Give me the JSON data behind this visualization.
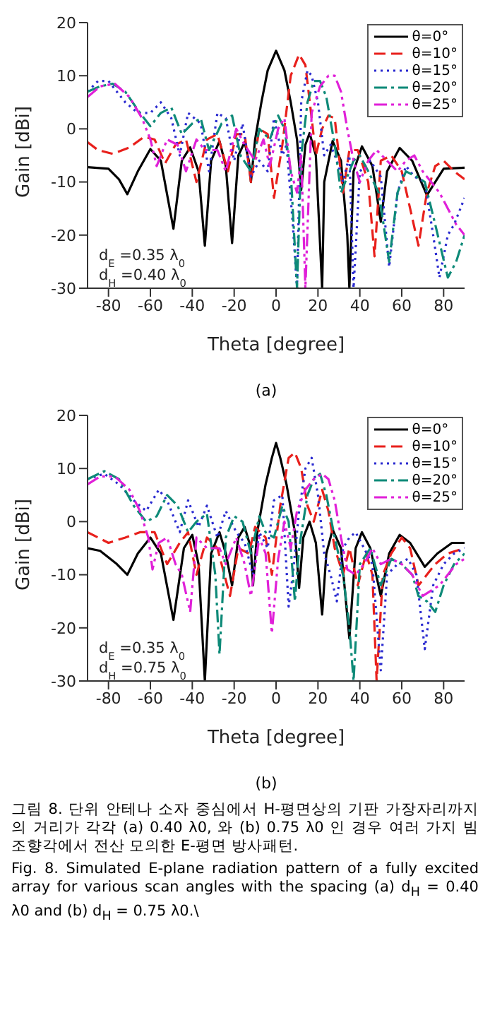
{
  "chart_data": [
    {
      "type": "line",
      "xlabel": "Theta [degree]",
      "ylabel": "Gain [dBi]",
      "xlim": [
        -90,
        90
      ],
      "xticks": [
        -80,
        -60,
        -40,
        -20,
        0,
        20,
        40,
        60,
        80
      ],
      "ylim": [
        -30,
        20
      ],
      "yticks": [
        -30,
        -20,
        -10,
        0,
        10,
        20
      ],
      "grid": false,
      "legend": "top right",
      "marker": "none",
      "annotations": [
        "d$_{E}$=0.35 λ$_{0}$",
        "d$_{H}$=0.40 λ$_{0}$",
        "(a)"
      ],
      "series": [
        {
          "name": "θ=0°",
          "color": "#000000",
          "line_style": "solid",
          "x": [
            -90,
            -80,
            -75,
            -71,
            -66,
            -60,
            -55,
            -49,
            -45,
            -41,
            -37,
            -34,
            -31,
            -27,
            -24,
            -21,
            -18,
            -15,
            -13,
            -12,
            -10,
            -7,
            -4,
            0,
            4,
            7,
            10,
            12,
            14,
            16,
            19,
            22,
            23,
            27,
            31,
            34,
            35,
            37,
            41,
            46,
            50,
            53,
            59,
            65,
            72,
            80,
            90
          ],
          "values": [
            -7.2,
            -7.5,
            -9.5,
            -12.3,
            -8,
            -3.8,
            -6,
            -18.8,
            -6,
            -3.5,
            -8,
            -22,
            -6,
            -2.3,
            -7,
            -21.5,
            -5,
            -2.5,
            -6,
            -10,
            -2,
            5,
            11,
            14.7,
            11,
            5,
            -2,
            -11.5,
            -3,
            -0.8,
            -5,
            -30,
            -10,
            -2.3,
            -6,
            -20,
            -30,
            -8,
            -3.3,
            -7,
            -17.5,
            -8,
            -3.6,
            -6,
            -12.5,
            -7.5,
            -7.3
          ]
        },
        {
          "name": "θ=10°",
          "color": "#e8201c",
          "line_style": "dashed",
          "x": [
            -90,
            -85,
            -78,
            -70,
            -63,
            -58,
            -53,
            -48,
            -43,
            -38,
            -33,
            -28,
            -23,
            -19,
            -15,
            -12,
            -8,
            -4,
            -1,
            3,
            7,
            11,
            14,
            17,
            19,
            22,
            25,
            28,
            32,
            35,
            39,
            44,
            47,
            50,
            55,
            60,
            64,
            68,
            72,
            76,
            80,
            85,
            90
          ],
          "values": [
            -2.5,
            -4,
            -4.7,
            -3.5,
            -1.5,
            -2,
            -6.5,
            -3,
            -2,
            -10,
            -2,
            -1,
            -8,
            -1,
            -1,
            -10,
            0,
            -1,
            -13,
            -3,
            10,
            14,
            12,
            2,
            -5,
            0,
            2.5,
            2,
            -12,
            -4,
            -4,
            -10,
            -24,
            -6,
            -5,
            -8,
            -15,
            -22,
            -12,
            -7,
            -6,
            -8,
            -9.5
          ]
        },
        {
          "name": "θ=15°",
          "color": "#2a2ad0",
          "line_style": "dotted",
          "x": [
            -90,
            -85,
            -80,
            -72,
            -66,
            -60,
            -55,
            -50,
            -46,
            -42,
            -36,
            -32,
            -28,
            -24,
            -20,
            -16,
            -12,
            -8,
            -4,
            -1,
            3,
            5,
            8,
            10,
            12,
            15,
            17,
            20,
            23,
            26,
            29,
            32,
            35,
            37,
            40,
            45,
            50,
            54,
            58,
            62,
            66,
            71,
            75,
            78,
            82,
            85,
            88,
            90
          ],
          "values": [
            7,
            9,
            9,
            5,
            3,
            3,
            5,
            2,
            -5,
            3,
            1,
            -8,
            3,
            2,
            -6,
            1,
            -9,
            -6,
            -8,
            2,
            -5,
            -3,
            -18,
            -30,
            5,
            11,
            10,
            5,
            -5,
            -3,
            -6,
            -10,
            -5,
            -30,
            -8,
            -6,
            -9,
            -26,
            -12,
            -7,
            -9,
            -10,
            -20,
            -28,
            -20,
            -18,
            -15,
            -13
          ]
        },
        {
          "name": "θ=20°",
          "color": "#0e8a78",
          "line_style": "dashdot",
          "x": [
            -90,
            -84,
            -78,
            -72,
            -65,
            -60,
            -55,
            -50,
            -45,
            -40,
            -36,
            -32,
            -26,
            -21,
            -17,
            -12,
            -8,
            -3,
            1,
            4,
            7,
            10,
            12,
            15,
            18,
            21,
            24,
            28,
            31,
            34,
            37,
            40,
            44,
            49,
            54,
            58,
            62,
            67,
            71,
            76,
            82,
            86,
            90
          ],
          "values": [
            7,
            8,
            8.5,
            7,
            3,
            0.5,
            3,
            4,
            -1,
            1,
            2,
            -4,
            1,
            2.5,
            -5,
            -8,
            0,
            -2,
            2.5,
            0,
            -8,
            -30,
            -5,
            5,
            9,
            9,
            6,
            -3,
            -12,
            -9,
            -6,
            -5,
            -8,
            -12,
            -25,
            -12,
            -8,
            -9,
            -10,
            -18,
            -28,
            -25,
            -20
          ]
        },
        {
          "name": "θ=25°",
          "color": "#e020d8",
          "line_style": "dashdotdot",
          "x": [
            -90,
            -84,
            -77,
            -70,
            -64,
            -60,
            -57,
            -52,
            -47,
            -43,
            -38,
            -34,
            -28,
            -24,
            -19,
            -15,
            -10,
            -6,
            -3,
            1,
            4,
            7,
            10,
            12,
            14,
            17,
            21,
            25,
            28,
            31,
            34,
            37,
            40,
            44,
            48,
            53,
            58,
            62,
            66,
            70,
            74,
            78,
            82,
            86,
            90
          ],
          "values": [
            6,
            8,
            8.5,
            6,
            2,
            -2,
            -7,
            -2,
            -3,
            -8,
            -2,
            -4,
            -4,
            -8,
            0,
            -3,
            -6,
            -2,
            -7,
            0,
            2,
            -8,
            -12,
            -5,
            -30,
            3,
            8,
            10,
            10,
            7,
            0,
            -6,
            -10,
            -6,
            -4,
            -6,
            -8,
            -6,
            -5,
            -8,
            -10,
            -12,
            -15,
            -18,
            -20
          ]
        }
      ]
    },
    {
      "type": "line",
      "xlabel": "Theta [degree]",
      "ylabel": "Gain [dBi]",
      "xlim": [
        -90,
        90
      ],
      "xticks": [
        -80,
        -60,
        -40,
        -20,
        0,
        20,
        40,
        60,
        80
      ],
      "ylim": [
        -30,
        20
      ],
      "yticks": [
        -30,
        -20,
        -10,
        0,
        10,
        20
      ],
      "grid": false,
      "legend": "top right",
      "marker": "none",
      "annotations": [
        "d$_{E}$=0.35 λ$_{0}$",
        "d$_{H}$=0.75 λ$_{0}$",
        "(b)",
        "그림 8. 단위 안테나 소자 중심에서 H-평면상의 기판 가장자리까지의 거리가 각각 (a) 0.40 λ0, 와 (b) 0.75 λ0 인 경우 여러 가지 빔 조향각에서 전산 모의한 E-평면 방사패턴.",
        "Fig. 8. Simulated E-plane radiation pattern of a fully excited array for various scan angles with the spacing (a) d$_{H}$ = 0.40 λ0 and (b) d$_{H}$ = 0.75 λ0.\\"
      ],
      "series": [
        {
          "name": "θ=0°",
          "color": "#000000",
          "line_style": "solid",
          "x": [
            -90,
            -84,
            -76,
            -71,
            -66,
            -60,
            -55,
            -49,
            -44,
            -40,
            -37,
            -34,
            -31,
            -27,
            -24,
            -21,
            -18,
            -15,
            -12,
            -11,
            -9,
            -5,
            -2,
            0,
            2,
            5,
            9,
            11,
            13,
            16,
            19,
            22,
            24,
            27,
            31,
            35,
            38,
            41,
            45,
            50,
            54,
            59,
            64,
            71,
            77,
            84,
            90
          ],
          "values": [
            -5,
            -5.5,
            -8,
            -10,
            -6,
            -3,
            -6,
            -18.5,
            -5,
            -2.5,
            -8,
            -30,
            -6,
            -2,
            -6,
            -12,
            -3,
            -1,
            -5,
            -12,
            -2,
            7,
            12,
            14.8,
            12,
            7,
            -2,
            -12.5,
            -3,
            0,
            -4,
            -17.5,
            -6,
            -1.5,
            -5,
            -22,
            -5,
            -2,
            -5,
            -14,
            -6,
            -2.5,
            -4,
            -8.5,
            -6,
            -4,
            -4
          ]
        },
        {
          "name": "θ=10°",
          "color": "#e8201c",
          "line_style": "dashed",
          "x": [
            -90,
            -80,
            -72,
            -65,
            -58,
            -52,
            -46,
            -42,
            -38,
            -33,
            -28,
            -22,
            -18,
            -13,
            -10,
            -5,
            -2,
            2,
            6,
            9,
            12,
            15,
            18,
            22,
            25,
            28,
            32,
            35,
            39,
            43,
            46,
            48,
            51,
            55,
            60,
            64,
            68,
            72,
            76,
            82,
            90
          ],
          "values": [
            -2,
            -4,
            -3,
            -2,
            -2,
            -8,
            -4,
            -2,
            -10,
            -3,
            -5,
            -14,
            -5,
            -6,
            -1,
            -3,
            -10,
            3,
            12,
            13,
            10,
            3,
            0,
            6,
            2,
            -5,
            -10,
            -5,
            -12,
            -6,
            -10,
            -30,
            -10,
            -6,
            -3,
            -5,
            -12,
            -10,
            -8,
            -6,
            -5
          ]
        },
        {
          "name": "θ=15°",
          "color": "#2a2ad0",
          "line_style": "dotted",
          "x": [
            -90,
            -82,
            -75,
            -68,
            -62,
            -56,
            -52,
            -46,
            -42,
            -37,
            -33,
            -28,
            -24,
            -19,
            -15,
            -11,
            -8,
            -4,
            -1,
            3,
            6,
            8,
            11,
            14,
            17,
            20,
            23,
            26,
            29,
            32,
            35,
            38,
            42,
            46,
            50,
            53,
            58,
            63,
            67,
            71,
            75,
            80,
            85,
            90
          ],
          "values": [
            8,
            9,
            7,
            4,
            2,
            6,
            4,
            -2,
            4,
            -1,
            3,
            -3,
            2,
            -2,
            -4,
            -10,
            -2,
            -5,
            4,
            5,
            -16,
            -10,
            2,
            10,
            12,
            5,
            -6,
            -10,
            -15,
            -5,
            -3,
            -2,
            -5,
            -8,
            -28,
            -10,
            -8,
            -7,
            -10,
            -24,
            -12,
            -8,
            -6,
            -5
          ]
        },
        {
          "name": "θ=20°",
          "color": "#0e8a78",
          "line_style": "dashdot",
          "x": [
            -90,
            -82,
            -75,
            -68,
            -62,
            -57,
            -52,
            -47,
            -42,
            -38,
            -33,
            -29,
            -27,
            -24,
            -20,
            -16,
            -12,
            -8,
            -5,
            -1,
            3,
            6,
            9,
            11,
            15,
            18,
            21,
            24,
            28,
            32,
            35,
            37,
            40,
            45,
            50,
            55,
            60,
            65,
            68,
            72,
            76,
            80,
            85,
            90
          ],
          "values": [
            8,
            9.5,
            8,
            3,
            0,
            1,
            5,
            3,
            -2,
            0,
            1.5,
            -10,
            -25,
            -3,
            1,
            0,
            -6,
            1,
            -2,
            -3,
            3,
            0,
            -15,
            -5,
            5,
            8,
            9,
            5,
            -3,
            -10,
            -20,
            -30,
            -8,
            -5,
            -12,
            -7,
            -8,
            -10,
            -14,
            -15,
            -17,
            -12,
            -8,
            -6
          ]
        },
        {
          "name": "θ=25°",
          "color": "#e020d8",
          "line_style": "dashdotdot",
          "x": [
            -90,
            -84,
            -77,
            -70,
            -65,
            -61,
            -59,
            -56,
            -52,
            -48,
            -45,
            -41,
            -38,
            -33,
            -27,
            -24,
            -19,
            -15,
            -12,
            -8,
            -5,
            -2,
            1,
            4,
            7,
            10,
            14,
            18,
            22,
            25,
            28,
            31,
            34,
            38,
            42,
            46,
            50,
            55,
            60,
            65,
            70,
            74,
            78,
            82,
            86,
            90
          ],
          "values": [
            7,
            8.5,
            8.5,
            6,
            2,
            -3,
            -9,
            -4,
            -3,
            -8,
            -10,
            -17,
            -3,
            -5,
            -5,
            -8,
            -3,
            -8,
            -14,
            -3,
            -6,
            -21,
            -7,
            0,
            -5,
            2,
            6,
            8,
            9,
            8,
            4,
            -3,
            -9,
            -10,
            -8,
            -5,
            -8,
            -7,
            -8,
            -10,
            -14,
            -13,
            -12,
            -10,
            -8,
            -7
          ]
        }
      ]
    }
  ]
}
